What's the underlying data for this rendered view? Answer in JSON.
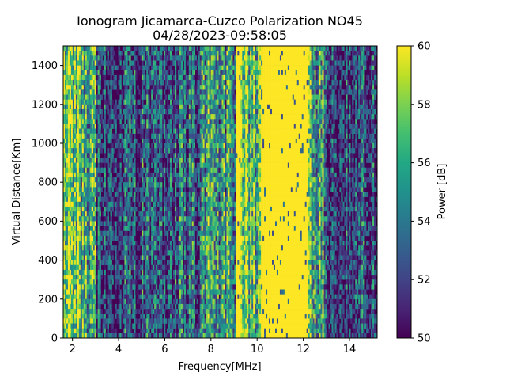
{
  "chart_data": {
    "type": "heatmap",
    "title_line1": "Ionogram Jicamarca-Cuzco Polarization NO45",
    "title_line2": "04/28/2023-09:58:05",
    "xlabel": "Frequency[MHz]",
    "ylabel": "Virtual Distance[Km]",
    "xlim": [
      1.6,
      15.2
    ],
    "ylim": [
      0,
      1500
    ],
    "xticks": [
      2,
      4,
      6,
      8,
      10,
      12,
      14
    ],
    "xtick_labels": [
      "2",
      "4",
      "6",
      "8",
      "10",
      "12",
      "14"
    ],
    "yticks": [
      0,
      200,
      400,
      600,
      800,
      1000,
      1200,
      1400
    ],
    "ytick_labels": [
      "0",
      "200",
      "400",
      "600",
      "800",
      "1000",
      "1200",
      "1400"
    ],
    "colorbar": {
      "label": "Power [dB]",
      "min": 50,
      "max": 60,
      "colormap": "viridis",
      "ticks": [
        50,
        52,
        54,
        56,
        58,
        60
      ],
      "tick_labels": [
        "50",
        "52",
        "54",
        "56",
        "58",
        "60"
      ]
    },
    "frequency_bands": [
      {
        "from": 1.6,
        "to": 2.3,
        "power_db": 58
      },
      {
        "from": 2.3,
        "to": 3.0,
        "power_db": 56
      },
      {
        "from": 3.0,
        "to": 5.0,
        "power_db": 52
      },
      {
        "from": 5.0,
        "to": 7.5,
        "power_db": 53
      },
      {
        "from": 7.5,
        "to": 9.1,
        "power_db": 55
      },
      {
        "from": 9.1,
        "to": 9.3,
        "power_db": 60
      },
      {
        "from": 9.3,
        "to": 10.2,
        "power_db": 57
      },
      {
        "from": 10.2,
        "to": 12.2,
        "power_db": 60
      },
      {
        "from": 12.2,
        "to": 13.0,
        "power_db": 56
      },
      {
        "from": 13.0,
        "to": 15.2,
        "power_db": 52
      }
    ]
  }
}
